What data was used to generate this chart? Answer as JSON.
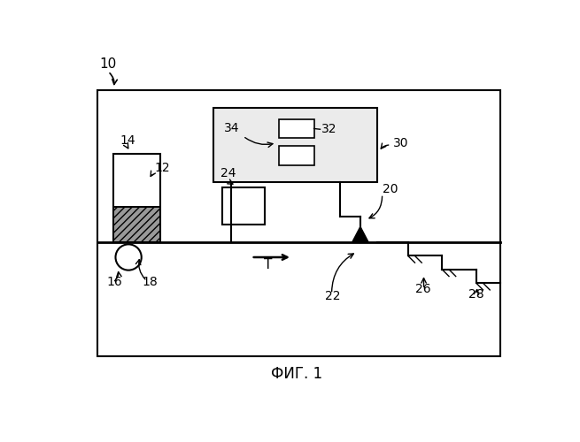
{
  "title": "ФИГ. 1",
  "label_10": "10",
  "label_12": "12",
  "label_14": "14",
  "label_16": "16",
  "label_18": "18",
  "label_20": "20",
  "label_22": "22",
  "label_24": "24",
  "label_26": "26",
  "label_28": "28",
  "label_30": "30",
  "label_32": "32",
  "label_34": "34",
  "label_T": "T",
  "bg_color": "#ffffff",
  "line_color": "#000000"
}
